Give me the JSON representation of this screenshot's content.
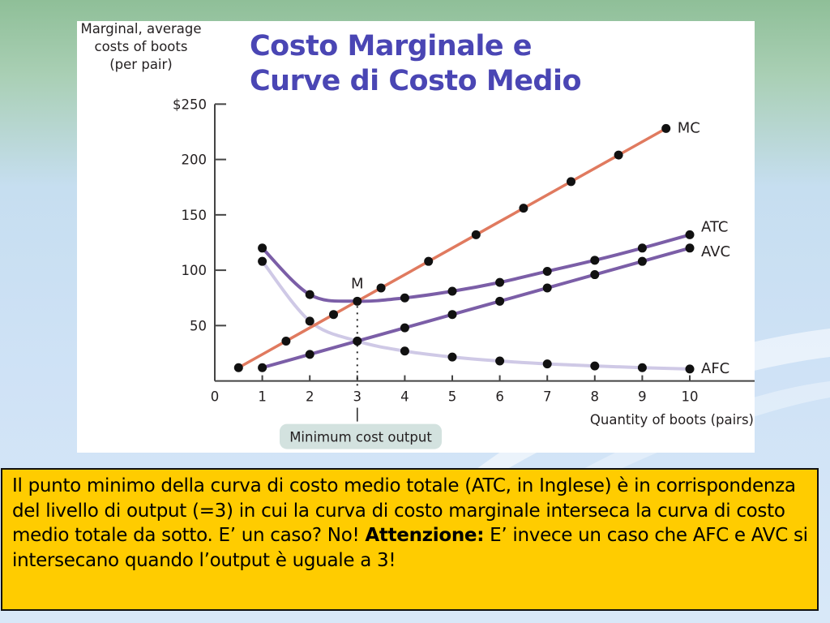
{
  "slide": {
    "title_line1": "Costo Marginale e",
    "title_line2": "Curve di Costo Medio"
  },
  "colors": {
    "title": "#4a46b4",
    "mc": "#e07a5f",
    "atc": "#7b5ea7",
    "avc": "#7b5ea7",
    "afc": "#cfc9e6",
    "caption_bg": "#ffcc00"
  },
  "chart_data": {
    "type": "line",
    "ylabel_lines": [
      "Marginal, average",
      "costs of boots",
      "(per pair)"
    ],
    "xlabel": "Quantity of boots (pairs)",
    "x_ticks": [
      0,
      1,
      2,
      3,
      4,
      5,
      6,
      7,
      8,
      9,
      10
    ],
    "y_ticks": [
      50,
      100,
      150,
      200
    ],
    "y_tick_labels": [
      "50",
      "100",
      "150",
      "200",
      "$250"
    ],
    "y_top_tick": 250,
    "xlim": [
      0,
      11.3
    ],
    "ylim": [
      0,
      265
    ],
    "series": [
      {
        "name": "MC",
        "x": [
          0.5,
          1.5,
          2.5,
          3.5,
          4.5,
          5.5,
          6.5,
          7.5,
          8.5,
          9.5
        ],
        "values": [
          12,
          36,
          60,
          84,
          108,
          132,
          156,
          180,
          204,
          228
        ]
      },
      {
        "name": "ATC",
        "x": [
          1,
          2,
          3,
          4,
          5,
          6,
          7,
          8,
          9,
          10
        ],
        "values": [
          120,
          78,
          72,
          75,
          81,
          89,
          99,
          109,
          120,
          132
        ]
      },
      {
        "name": "AVC",
        "x": [
          1,
          2,
          3,
          4,
          5,
          6,
          7,
          8,
          9,
          10
        ],
        "values": [
          12,
          24,
          36,
          48,
          60,
          72,
          84,
          96,
          108,
          120
        ]
      },
      {
        "name": "AFC",
        "x": [
          1,
          2,
          3,
          4,
          5,
          6,
          7,
          8,
          9,
          10
        ],
        "values": [
          108,
          54,
          36,
          27,
          21.6,
          18,
          15.4,
          13.5,
          12,
          10.8
        ]
      }
    ],
    "annotations": {
      "point_label": "M",
      "point_x": 3,
      "point_y": 72,
      "min_output_label": "Minimum cost output"
    }
  },
  "caption": {
    "text_before": "Il punto minimo della curva di costo medio totale (ATC, in Inglese) è in corrispondenza del livello di output (=3) in cui la curva di costo marginale interseca la curva di costo medio totale da sotto. E’ un caso? No! ",
    "bold": "Attenzione:",
    "text_after": " E’ invece un caso che AFC e AVC si intersecano quando l’output è uguale a 3!"
  }
}
